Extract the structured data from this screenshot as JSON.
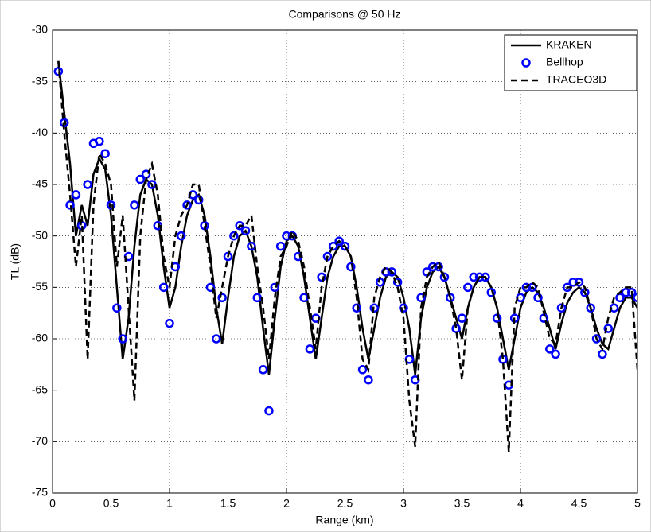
{
  "chart_data": {
    "type": "line",
    "title": "Comparisons @ 50 Hz",
    "x_label": "Range (km)",
    "y_label": "TL (dB)",
    "x": [
      0.05,
      0.1,
      0.15,
      0.2,
      0.25,
      0.3,
      0.35,
      0.4,
      0.45,
      0.5,
      0.55,
      0.6,
      0.65,
      0.7,
      0.75,
      0.8,
      0.85,
      0.9,
      0.95,
      1.0,
      1.05,
      1.1,
      1.15,
      1.2,
      1.25,
      1.3,
      1.35,
      1.4,
      1.45,
      1.5,
      1.55,
      1.6,
      1.65,
      1.7,
      1.75,
      1.8,
      1.85,
      1.9,
      1.95,
      2.0,
      2.05,
      2.1,
      2.15,
      2.2,
      2.25,
      2.3,
      2.35,
      2.4,
      2.45,
      2.5,
      2.55,
      2.6,
      2.65,
      2.7,
      2.75,
      2.8,
      2.85,
      2.9,
      2.95,
      3.0,
      3.05,
      3.1,
      3.15,
      3.2,
      3.25,
      3.3,
      3.35,
      3.4,
      3.45,
      3.5,
      3.55,
      3.6,
      3.65,
      3.7,
      3.75,
      3.8,
      3.85,
      3.9,
      3.95,
      4.0,
      4.05,
      4.1,
      4.15,
      4.2,
      4.25,
      4.3,
      4.35,
      4.4,
      4.45,
      4.5,
      4.55,
      4.6,
      4.65,
      4.7,
      4.75,
      4.8,
      4.85,
      4.9,
      4.95,
      5.0
    ],
    "series": [
      {
        "name": "KRAKEN",
        "color": "#000000",
        "style": "solid",
        "values": [
          -33,
          -38,
          -43,
          -50,
          -47,
          -49,
          -44,
          -42.5,
          -43.5,
          -48,
          -55,
          -62,
          -58,
          -51,
          -46,
          -44.5,
          -45,
          -48,
          -53,
          -57,
          -55,
          -51,
          -48,
          -46.5,
          -46,
          -48,
          -52,
          -57,
          -60.5,
          -56,
          -52,
          -50,
          -49.5,
          -51,
          -54,
          -59,
          -63.5,
          -58,
          -53,
          -50.5,
          -50,
          -51,
          -54,
          -58,
          -62,
          -58,
          -54,
          -52,
          -51,
          -51,
          -52,
          -55,
          -59,
          -62,
          -59,
          -56,
          -54,
          -53.5,
          -54,
          -56,
          -59,
          -63.5,
          -58,
          -55,
          -53.5,
          -53,
          -54,
          -56,
          -58,
          -60,
          -57,
          -55,
          -54,
          -54,
          -55,
          -57,
          -60,
          -63,
          -60,
          -57,
          -55.5,
          -55,
          -55.5,
          -57,
          -59,
          -61,
          -58.5,
          -56.5,
          -55.5,
          -55,
          -55.5,
          -57,
          -59,
          -60.5,
          -61,
          -59,
          -57,
          -56,
          -56,
          -57
        ]
      },
      {
        "name": "Bellhop",
        "color": "#0000ff",
        "style": "circles",
        "values": [
          -34,
          -39,
          -47,
          -46,
          -49,
          -45,
          -41,
          -40.8,
          -42,
          -47,
          -57,
          -60,
          -52,
          -47,
          -44.5,
          -44,
          -45,
          -49,
          -55,
          -58.5,
          -53,
          -50,
          -47,
          -46,
          -46.5,
          -49,
          -55,
          -60,
          -56,
          -52,
          -50,
          -49,
          -49.5,
          -51,
          -56,
          -63,
          -67,
          -55,
          -51,
          -50,
          -50,
          -52,
          -56,
          -61,
          -58,
          -54,
          -52,
          -51,
          -50.5,
          -51,
          -53,
          -57,
          -63,
          -64,
          -57,
          -54.5,
          -53.5,
          -53.5,
          -54.5,
          -57,
          -62,
          -64,
          -56,
          -53.5,
          -53,
          -53,
          -54,
          -56,
          -59,
          -58,
          -55,
          -54,
          -54,
          -54,
          -55.5,
          -58,
          -62,
          -64.5,
          -58,
          -56,
          -55,
          -55,
          -56,
          -58,
          -61,
          -61.5,
          -57,
          -55,
          -54.5,
          -54.5,
          -55.5,
          -57,
          -60,
          -61.5,
          -59,
          -57,
          -56,
          -55.5,
          -55.5,
          -56
        ]
      },
      {
        "name": "TRACEO3D",
        "color": "#000000",
        "style": "dashed",
        "values": [
          -33,
          -40,
          -46,
          -53,
          -48,
          -62,
          -47,
          -42,
          -43,
          -45,
          -53,
          -48,
          -57,
          -66,
          -50,
          -44.5,
          -43,
          -46,
          -52,
          -55,
          -50,
          -48,
          -47,
          -45,
          -45,
          -49,
          -53,
          -58,
          -55,
          -52,
          -50,
          -49,
          -49,
          -48,
          -53,
          -57,
          -62,
          -56,
          -52,
          -51,
          -49.5,
          -50.5,
          -53,
          -57,
          -61,
          -55,
          -52,
          -51,
          -50.5,
          -51,
          -52,
          -56,
          -62,
          -63,
          -56,
          -54,
          -53,
          -53.5,
          -55,
          -58,
          -66,
          -70.5,
          -57,
          -54,
          -53,
          -52.5,
          -54,
          -56,
          -59,
          -64,
          -57,
          -55,
          -54,
          -54,
          -55,
          -57,
          -62,
          -71,
          -57,
          -55,
          -55,
          -54.5,
          -55,
          -57.5,
          -60,
          -60.5,
          -57,
          -55,
          -55,
          -54.5,
          -55,
          -57,
          -60,
          -61,
          -58,
          -56,
          -55.5,
          -55,
          -55,
          -63
        ]
      }
    ],
    "xlim": [
      0,
      5
    ],
    "xticks": [
      0,
      0.5,
      1,
      1.5,
      2,
      2.5,
      3,
      3.5,
      4,
      4.5,
      5
    ],
    "ylim": [
      -75,
      -30
    ],
    "yticks": [
      -75,
      -70,
      -65,
      -60,
      -55,
      -50,
      -45,
      -40,
      -35,
      -30
    ],
    "grid": true,
    "legend": "upper right"
  }
}
